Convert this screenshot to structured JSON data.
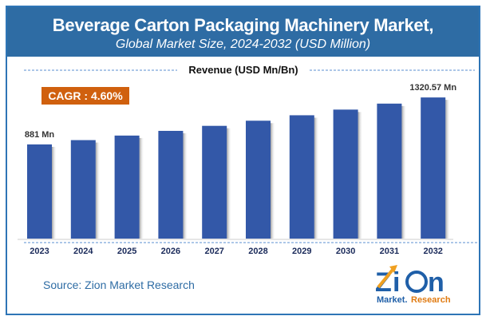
{
  "chart_data": {
    "type": "bar",
    "title": "Beverage Carton Packaging Machinery Market,",
    "subtitle": "Global Market Size, 2024-2032 (USD Million)",
    "legend_label": "Revenue (USD Mn/Bn)",
    "categories": [
      "2023",
      "2024",
      "2025",
      "2026",
      "2027",
      "2028",
      "2029",
      "2030",
      "2031",
      "2032"
    ],
    "values": [
      881,
      921.5,
      964,
      1008,
      1055,
      1103,
      1154,
      1207,
      1263,
      1320.57
    ],
    "data_labels": {
      "0": "881 Mn",
      "9": "1320.57 Mn"
    },
    "ylim": [
      0,
      1400
    ],
    "bar_color": "#3358a8",
    "grid": false
  },
  "cagr": "CAGR : 4.60%",
  "cagr_color": "#d0600e",
  "header_color": "#2e6ca4",
  "source": "Source: Zion Market Research",
  "logo": {
    "text_top": "Zion",
    "text_bottom": "Market Research"
  }
}
